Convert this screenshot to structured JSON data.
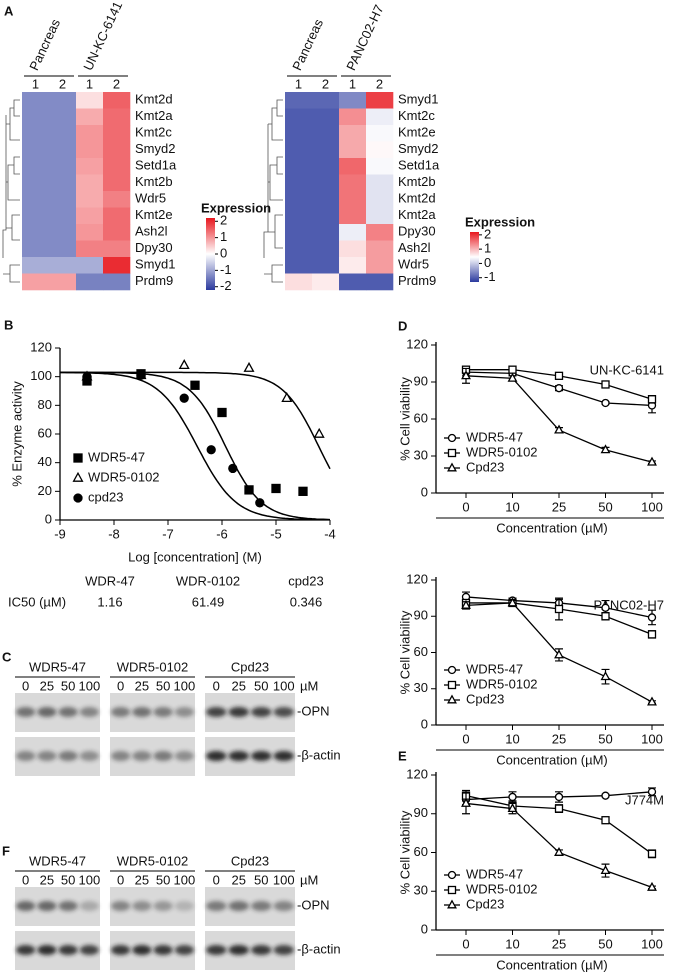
{
  "chart_data": [
    {
      "type": "heatmap",
      "panel": "A",
      "column_groups": [
        {
          "name": "Pancreas",
          "columns": [
            "1",
            "2"
          ]
        },
        {
          "name": "UN-KC-6141",
          "columns": [
            "1",
            "2"
          ]
        }
      ],
      "rows": [
        "Kmt2d",
        "Kmt2a",
        "Kmt2c",
        "Smyd2",
        "Setd1a",
        "Kmt2b",
        "Wdr5",
        "Kmt2e",
        "Ash2l",
        "Dpy30",
        "Smyd1",
        "Prdm9"
      ],
      "values": [
        [
          -1.3,
          -1.3,
          0.3,
          1.5
        ],
        [
          -1.3,
          -1.3,
          0.8,
          1.4
        ],
        [
          -1.3,
          -1.3,
          1.0,
          1.4
        ],
        [
          -1.3,
          -1.3,
          1.0,
          1.4
        ],
        [
          -1.3,
          -1.3,
          0.9,
          1.4
        ],
        [
          -1.3,
          -1.3,
          0.8,
          1.4
        ],
        [
          -1.3,
          -1.3,
          0.8,
          1.2
        ],
        [
          -1.3,
          -1.3,
          0.9,
          1.4
        ],
        [
          -1.3,
          -1.3,
          1.0,
          1.4
        ],
        [
          -1.3,
          -1.3,
          1.2,
          1.2
        ],
        [
          -0.9,
          -0.9,
          -0.9,
          2.0
        ],
        [
          0.9,
          0.9,
          -1.4,
          -1.4
        ]
      ],
      "highlight_row": 6,
      "highlight_color": "#e8171e",
      "colors": [
        "#2b3a9e",
        "#ffffff",
        "#e8171e"
      ],
      "clim": [
        -2.2,
        2.2
      ],
      "colorbar_label": "Expression",
      "colorbar_ticks": [
        2,
        1,
        0,
        -1,
        -2
      ]
    },
    {
      "type": "heatmap",
      "column_groups": [
        {
          "name": "Pancreas",
          "columns": [
            "1",
            "2"
          ]
        },
        {
          "name": "PANC02-H7",
          "columns": [
            "1",
            "2"
          ]
        }
      ],
      "rows": [
        "Smyd1",
        "Kmt2c",
        "Kmt2e",
        "Smyd2",
        "Setd1a",
        "Kmt2b",
        "Kmt2d",
        "Kmt2a",
        "Dpy30",
        "Ash2l",
        "Wdr5",
        "Prdm9"
      ],
      "values": [
        [
          -0.9,
          -0.9,
          -0.6,
          1.9
        ],
        [
          -1.0,
          -1.0,
          1.3,
          0.3
        ],
        [
          -1.0,
          -1.0,
          1.1,
          0.4
        ],
        [
          -1.0,
          -1.0,
          1.1,
          0.5
        ],
        [
          -1.0,
          -1.0,
          1.6,
          0.4
        ],
        [
          -1.0,
          -1.0,
          1.5,
          0.2
        ],
        [
          -1.0,
          -1.0,
          1.5,
          0.2
        ],
        [
          -1.0,
          -1.0,
          1.5,
          0.2
        ],
        [
          -1.0,
          -1.0,
          0.3,
          1.4
        ],
        [
          -1.0,
          -1.0,
          0.7,
          1.2
        ],
        [
          -1.0,
          -1.0,
          0.6,
          1.2
        ],
        [
          0.7,
          0.6,
          -1.0,
          -1.0
        ]
      ],
      "highlight_row": 10,
      "highlight_color": "#e8171e",
      "colors": [
        "#2b3a9e",
        "#ffffff",
        "#e8171e"
      ],
      "clim": [
        -1.3,
        2.2
      ],
      "colorbar_label": "Expression",
      "colorbar_ticks": [
        2,
        1,
        0,
        -1
      ]
    },
    {
      "type": "scatter",
      "panel": "B",
      "xlabel": "Log [concentration] (M)",
      "ylabel": "% Enzyme activity",
      "xlim": [
        -9,
        -4
      ],
      "xticks": [
        -9,
        -8,
        -7,
        -6,
        -5,
        -4
      ],
      "ylim": [
        0,
        120
      ],
      "yticks": [
        0,
        20,
        40,
        60,
        80,
        100,
        120
      ],
      "series": [
        {
          "name": "WDR5-47",
          "marker": "square",
          "filled": true,
          "x": [
            -8.5,
            -7.5,
            -6.5,
            -6.0,
            -5.5,
            -5.0,
            -4.5
          ],
          "values": [
            97,
            102,
            94,
            75,
            21,
            22,
            20
          ],
          "fit_top": 103,
          "fit_bottom": 0,
          "fit_hill": 1.3
        },
        {
          "name": "WDR5-0102",
          "marker": "triangle",
          "filled": false,
          "x": [
            -8.5,
            -7.5,
            -6.7,
            -5.5,
            -4.8,
            -4.2
          ],
          "values": [
            100,
            101,
            108,
            106,
            85,
            60
          ],
          "fit_top": 103,
          "fit_bottom": 0,
          "fit_hill": 1.3
        },
        {
          "name": "cpd23",
          "marker": "circle",
          "filled": true,
          "x": [
            -8.5,
            -7.5,
            -6.7,
            -6.2,
            -5.8,
            -5.3
          ],
          "values": [
            100,
            101,
            85,
            49,
            36,
            12
          ],
          "fit_top": 103,
          "fit_bottom": 0,
          "fit_hill": 1.2
        }
      ],
      "ic50_table": {
        "label": "IC50 (µM)",
        "columns": [
          "WDR-47",
          "WDR-0102",
          "cpd23"
        ],
        "values": [
          1.16,
          61.49,
          0.346
        ]
      }
    },
    {
      "type": "line",
      "panel": "D",
      "annotation": "UN-KC-6141",
      "xlabel": "Concentration (µM)",
      "ylabel": "% Cell viability",
      "categories": [
        "0",
        "10",
        "25",
        "50",
        "100"
      ],
      "ylim": [
        0,
        120
      ],
      "yticks": [
        0,
        30,
        60,
        90,
        120
      ],
      "series": [
        {
          "name": "WDR5-47",
          "marker": "circle",
          "values": [
            98,
            97,
            85,
            73,
            71
          ],
          "errors": [
            3,
            2,
            2,
            1,
            6
          ]
        },
        {
          "name": "WDR5-0102",
          "marker": "square",
          "values": [
            100,
            100,
            95,
            88,
            76
          ],
          "errors": [
            2,
            2,
            2,
            2,
            3
          ]
        },
        {
          "name": "Cpd23",
          "marker": "triangle",
          "values": [
            95,
            93,
            51,
            35,
            25
          ],
          "errors": [
            6,
            2,
            2,
            2,
            1
          ]
        }
      ]
    },
    {
      "type": "line",
      "annotation": "PANC02-H7",
      "xlabel": "Concentration (µM)",
      "ylabel": "% Cell viability",
      "categories": [
        "0",
        "10",
        "25",
        "50",
        "100"
      ],
      "ylim": [
        0,
        120
      ],
      "yticks": [
        0,
        30,
        60,
        90,
        120
      ],
      "series": [
        {
          "name": "WDR5-47",
          "marker": "circle",
          "values": [
            106,
            103,
            101,
            97,
            89
          ],
          "errors": [
            4,
            2,
            3,
            6,
            6
          ]
        },
        {
          "name": "WDR5-0102",
          "marker": "square",
          "values": [
            101,
            101,
            96,
            90,
            75
          ],
          "errors": [
            2,
            2,
            9,
            3,
            3
          ]
        },
        {
          "name": "Cpd23",
          "marker": "triangle",
          "values": [
            99,
            101,
            58,
            40,
            19
          ],
          "errors": [
            3,
            2,
            5,
            6,
            1
          ]
        }
      ]
    },
    {
      "type": "line",
      "panel": "E",
      "annotation": "J774M",
      "xlabel": "Concentration (µM)",
      "ylabel": "% Cell viability",
      "categories": [
        "0",
        "10",
        "25",
        "50",
        "100"
      ],
      "ylim": [
        0,
        120
      ],
      "yticks": [
        0,
        30,
        60,
        90,
        120
      ],
      "series": [
        {
          "name": "WDR5-47",
          "marker": "circle",
          "values": [
            101,
            103,
            103,
            104,
            107
          ],
          "errors": [
            4,
            4,
            4,
            1,
            3
          ]
        },
        {
          "name": "WDR5-0102",
          "marker": "square",
          "values": [
            104,
            96,
            94,
            85,
            59
          ],
          "errors": [
            4,
            4,
            3,
            2,
            3
          ]
        },
        {
          "name": "Cpd23",
          "marker": "triangle",
          "values": [
            98,
            94,
            60,
            46,
            33
          ],
          "errors": [
            8,
            4,
            2,
            5,
            1
          ]
        }
      ]
    }
  ],
  "blots": [
    {
      "panel": "C",
      "groups": [
        "WDR5-47",
        "WDR5-0102",
        "Cpd23"
      ],
      "lanes": [
        "0",
        "25",
        "50",
        "100"
      ],
      "unit": "µM",
      "bands": [
        "-OPN",
        "-β-actin"
      ]
    },
    {
      "panel": "F",
      "groups": [
        "WDR5-47",
        "WDR5-0102",
        "Cpd23"
      ],
      "lanes": [
        "0",
        "25",
        "50",
        "100"
      ],
      "unit": "µM",
      "bands": [
        "-OPN",
        "-β-actin"
      ]
    }
  ]
}
